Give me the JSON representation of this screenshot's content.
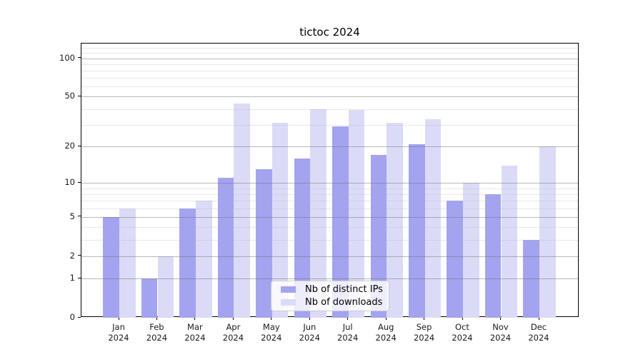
{
  "chart_data": {
    "type": "bar",
    "title": "tictoc 2024",
    "categories": [
      "Jan 2024",
      "Feb 2024",
      "Mar 2024",
      "Apr 2024",
      "May 2024",
      "Jun 2024",
      "Jul 2024",
      "Aug 2024",
      "Sep 2024",
      "Oct 2024",
      "Nov 2024",
      "Dec 2024"
    ],
    "series": [
      {
        "name": "Nb of distinct IPs",
        "color": "#a3a3f0",
        "values": [
          5,
          1,
          6,
          11,
          13,
          16,
          29,
          17,
          21,
          7,
          8,
          3
        ]
      },
      {
        "name": "Nb of downloads",
        "color": "#dbdbf8",
        "values": [
          6,
          2,
          7,
          44,
          31,
          40,
          39,
          31,
          33,
          10,
          14,
          20
        ]
      }
    ],
    "xlabel": "",
    "ylabel": "",
    "yscale": "log1p",
    "yticks": [
      0,
      1,
      2,
      5,
      10,
      20,
      50,
      100
    ],
    "minor_yticks": [
      3,
      4,
      6,
      7,
      8,
      9,
      30,
      40,
      60,
      70,
      80,
      90,
      110,
      120
    ],
    "ylim": [
      0,
      130
    ],
    "grid": "major+minor",
    "legend_position": "lower center",
    "colors": {
      "background": "#ffffff",
      "spine": "#000000",
      "major_grid": "#b0b0b0",
      "minor_grid": "#dddddd",
      "text": "#1a1a1a"
    }
  }
}
